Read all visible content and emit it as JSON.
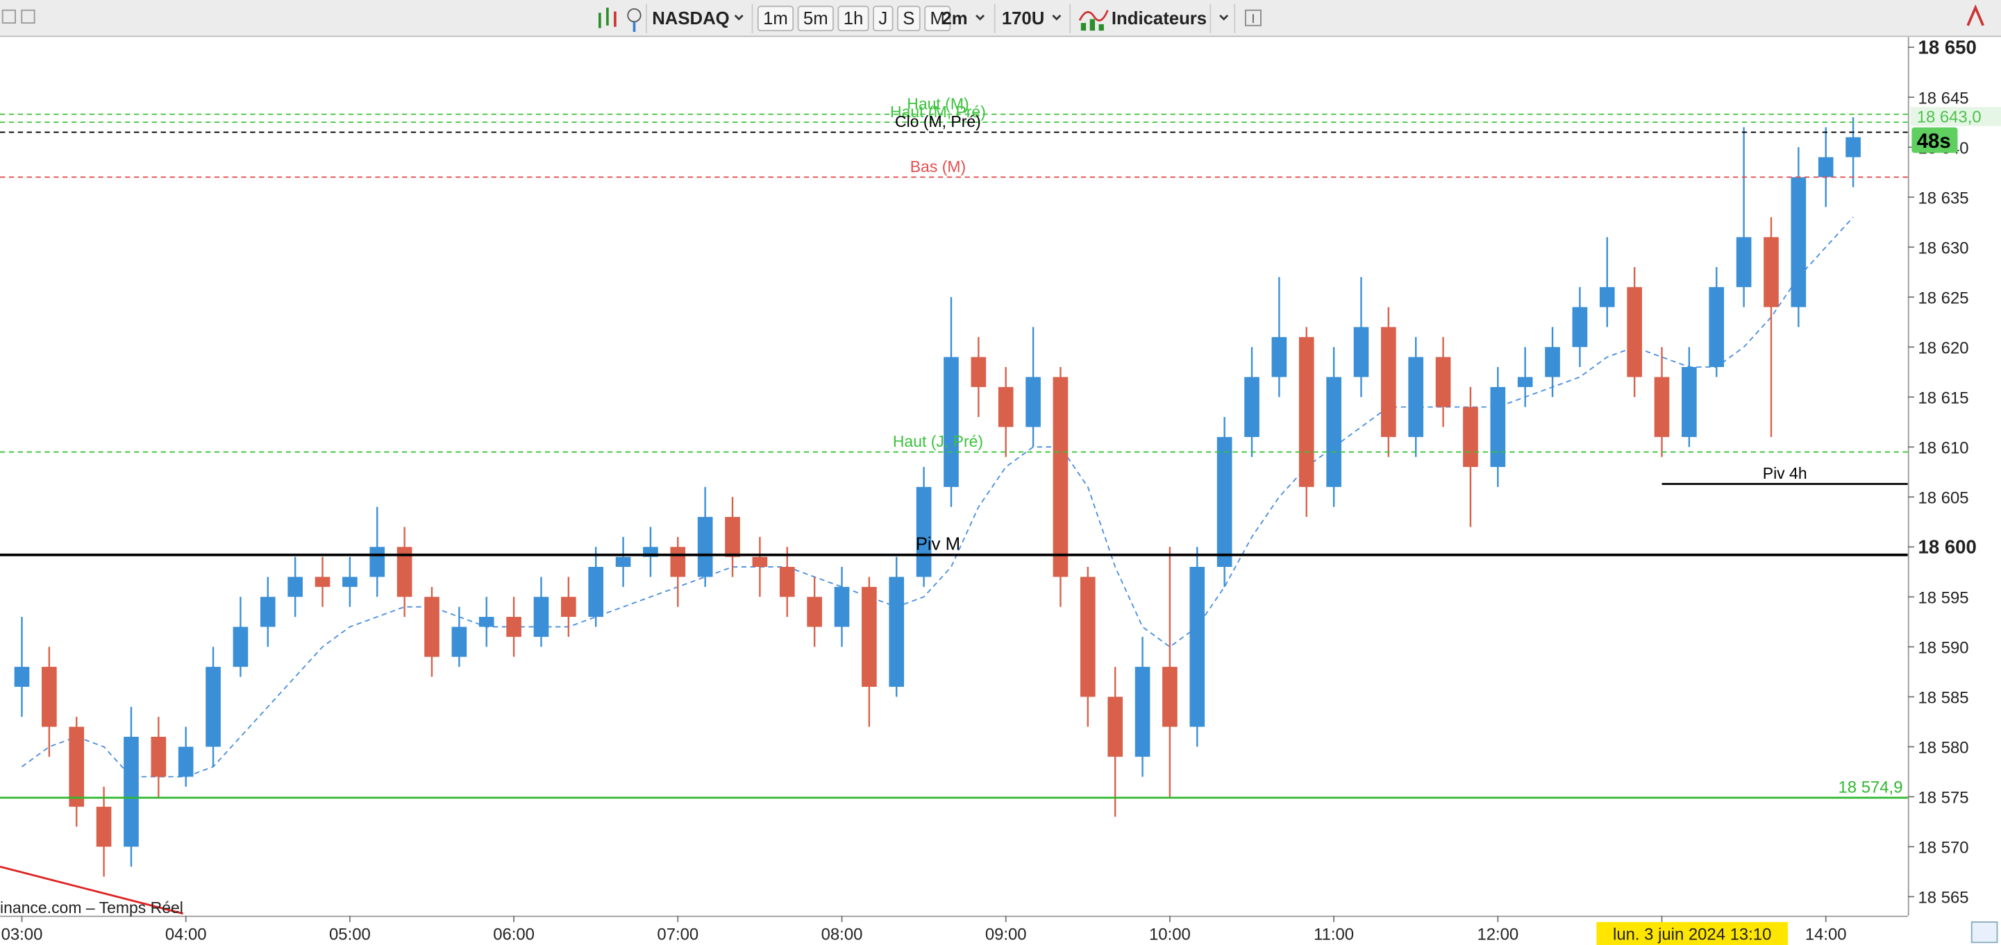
{
  "toolbar": {
    "symbol": "NASDAQ",
    "periods": [
      "1m",
      "5m",
      "1h",
      "J",
      "S",
      "M"
    ],
    "interval": "2m",
    "units": "170U",
    "indicators": "Indicateurs"
  },
  "chart_data": {
    "type": "candlestick",
    "x": [
      "03:00",
      "03:10",
      "03:20",
      "03:30",
      "03:40",
      "03:50",
      "04:00",
      "04:10",
      "04:20",
      "04:30",
      "04:40",
      "04:50",
      "05:00",
      "05:10",
      "05:20",
      "05:30",
      "05:40",
      "05:50",
      "06:00",
      "06:10",
      "06:20",
      "06:30",
      "06:40",
      "06:50",
      "07:00",
      "07:10",
      "07:20",
      "07:30",
      "07:40",
      "07:50",
      "08:00",
      "08:10",
      "08:20",
      "08:30",
      "08:40",
      "08:50",
      "09:00",
      "09:10",
      "09:20",
      "09:30",
      "09:40",
      "09:50",
      "10:00",
      "10:10",
      "10:20",
      "10:30",
      "10:40",
      "10:50",
      "11:00",
      "11:10",
      "11:20",
      "11:30",
      "11:40",
      "11:50",
      "12:00",
      "12:10",
      "12:20",
      "12:30",
      "12:40",
      "12:50",
      "13:00",
      "13:10",
      "13:20",
      "13:30",
      "13:40",
      "13:50",
      "14:00",
      "14:10"
    ],
    "open": [
      18586,
      18588,
      18582,
      18574,
      18570,
      18581,
      18577,
      18580,
      18588,
      18592,
      18595,
      18597,
      18596,
      18597,
      18600,
      18595,
      18589,
      18592,
      18593,
      18591,
      18595,
      18593,
      18598,
      18599,
      18600,
      18597,
      18603,
      18599,
      18598,
      18595,
      18592,
      18596,
      18586,
      18597,
      18606,
      18619,
      18616,
      18612,
      18617,
      18597,
      18585,
      18579,
      18588,
      18582,
      18598,
      18611,
      18617,
      18621,
      18606,
      18617,
      18622,
      18611,
      18619,
      18614,
      18608,
      18616,
      18617,
      18620,
      18624,
      18626,
      18617,
      18611,
      18618,
      18626,
      18631,
      18624,
      18637,
      18639
    ],
    "high": [
      18593,
      18590,
      18583,
      18576,
      18584,
      18583,
      18582,
      18590,
      18595,
      18597,
      18599,
      18599,
      18599,
      18604,
      18602,
      18596,
      18594,
      18595,
      18595,
      18597,
      18597,
      18600,
      18601,
      18602,
      18601,
      18606,
      18605,
      18601,
      18600,
      18597,
      18598,
      18597,
      18599,
      18608,
      18625,
      18621,
      18618,
      18622,
      18618,
      18598,
      18588,
      18591,
      18600,
      18600,
      18613,
      18620,
      18627,
      18622,
      18620,
      18627,
      18624,
      18621,
      18621,
      18616,
      18618,
      18620,
      18622,
      18626,
      18631,
      18628,
      18620,
      18620,
      18628,
      18642,
      18633,
      18640,
      18642,
      18643
    ],
    "low": [
      18583,
      18579,
      18572,
      18567,
      18568,
      18575,
      18576,
      18578,
      18587,
      18590,
      18593,
      18594,
      18594,
      18595,
      18593,
      18587,
      18588,
      18590,
      18589,
      18590,
      18591,
      18592,
      18596,
      18597,
      18594,
      18596,
      18597,
      18595,
      18593,
      18590,
      18590,
      18582,
      18585,
      18596,
      18604,
      18613,
      18609,
      18610,
      18594,
      18582,
      18573,
      18577,
      18575,
      18580,
      18596,
      18609,
      18615,
      18603,
      18604,
      18615,
      18609,
      18609,
      18612,
      18602,
      18606,
      18614,
      18615,
      18618,
      18622,
      18615,
      18609,
      18610,
      18617,
      18624,
      18611,
      18622,
      18634,
      18636
    ],
    "close": [
      18588,
      18582,
      18574,
      18570,
      18581,
      18577,
      18580,
      18588,
      18592,
      18595,
      18597,
      18596,
      18597,
      18600,
      18595,
      18589,
      18592,
      18593,
      18591,
      18595,
      18593,
      18598,
      18599,
      18600,
      18597,
      18603,
      18599,
      18598,
      18595,
      18592,
      18596,
      18586,
      18597,
      18606,
      18619,
      18616,
      18612,
      18617,
      18597,
      18585,
      18579,
      18588,
      18582,
      18598,
      18611,
      18617,
      18621,
      18606,
      18617,
      18622,
      18611,
      18619,
      18614,
      18608,
      18616,
      18617,
      18620,
      18624,
      18626,
      18617,
      18611,
      18618,
      18626,
      18631,
      18624,
      18637,
      18639,
      18641
    ],
    "up_color": "#3a8fd6",
    "down_color": "#d9604a",
    "ma": {
      "color": "#4a8fe0",
      "values": [
        18578,
        18580,
        18581,
        18580,
        18577,
        18577,
        18577,
        18578,
        18581,
        18584,
        18587,
        18590,
        18592,
        18593,
        18594,
        18594,
        18593,
        18592,
        18592,
        18592,
        18592,
        18593,
        18594,
        18595,
        18596,
        18597,
        18598,
        18598,
        18598,
        18597,
        18596,
        18595,
        18594,
        18595,
        18598,
        18604,
        18608,
        18610,
        18610,
        18606,
        18598,
        18592,
        18590,
        18592,
        18596,
        18601,
        18605,
        18608,
        18610,
        18612,
        18614,
        18614,
        18614,
        18614,
        18614,
        18615,
        18616,
        18617,
        18619,
        18620,
        18619,
        18618,
        18618,
        18620,
        18623,
        18627,
        18630,
        18633
      ]
    },
    "levels": [
      {
        "name": "Haut (M)",
        "value": 18643.3,
        "color": "#3cc23c",
        "style": "dashed"
      },
      {
        "name": "Haut (M, Pré)",
        "value": 18642.5,
        "color": "#3cc23c",
        "style": "dashed"
      },
      {
        "name": "Clo (M, Pré)",
        "value": 18641.5,
        "color": "#000000",
        "style": "dashed"
      },
      {
        "name": "Bas (M)",
        "value": 18637,
        "color": "#e05050",
        "style": "dashed"
      },
      {
        "name": "Haut (J, Pré)",
        "value": 18609.5,
        "color": "#3cc23c",
        "style": "dashed"
      },
      {
        "name": "Piv M",
        "value": 18599.2,
        "color": "#000000",
        "style": "solid"
      },
      {
        "name": "Piv 4h",
        "value": 18606.3,
        "color": "#000000",
        "style": "solid",
        "start": "13:00"
      },
      {
        "value": 18574.9,
        "value_label": "18 574,9",
        "color": "#2fb82f",
        "style": "solid"
      }
    ],
    "trendline": {
      "color": "#e02020",
      "x": [
        "02:52",
        "03:59"
      ],
      "values": [
        18568,
        18563.3
      ]
    },
    "last_price": {
      "value": 18643,
      "value_label": "18 643,0"
    },
    "countdown": "48s",
    "crosshair_label": "lun. 3 juin 2024 13:10",
    "watermark": "inance.com – Temps Réel",
    "xlim": [
      "02:52",
      "14:30"
    ],
    "xticks": [
      "03:00",
      "04:00",
      "05:00",
      "06:00",
      "07:00",
      "08:00",
      "09:00",
      "10:00",
      "11:00",
      "12:00",
      "13:00",
      "14:00"
    ],
    "ylim": [
      18563.1,
      18650.9
    ],
    "yticks": [
      {
        "value": 18565,
        "label": "18 565"
      },
      {
        "value": 18570,
        "label": "18 570"
      },
      {
        "value": 18575,
        "label": "18 575"
      },
      {
        "value": 18580,
        "label": "18 580"
      },
      {
        "value": 18585,
        "label": "18 585"
      },
      {
        "value": 18590,
        "label": "18 590"
      },
      {
        "value": 18595,
        "label": "18 595"
      },
      {
        "value": 18600,
        "label": "18 600"
      },
      {
        "value": 18605,
        "label": "18 605"
      },
      {
        "value": 18610,
        "label": "18 610"
      },
      {
        "value": 18615,
        "label": "18 615"
      },
      {
        "value": 18620,
        "label": "18 620"
      },
      {
        "value": 18625,
        "label": "18 625"
      },
      {
        "value": 18630,
        "label": "18 630"
      },
      {
        "value": 18635,
        "label": "18 635"
      },
      {
        "value": 18640,
        "label": "18 640"
      },
      {
        "value": 18645,
        "label": "18 645"
      },
      {
        "value": 18650,
        "label": "18 650"
      }
    ],
    "grid": false
  }
}
